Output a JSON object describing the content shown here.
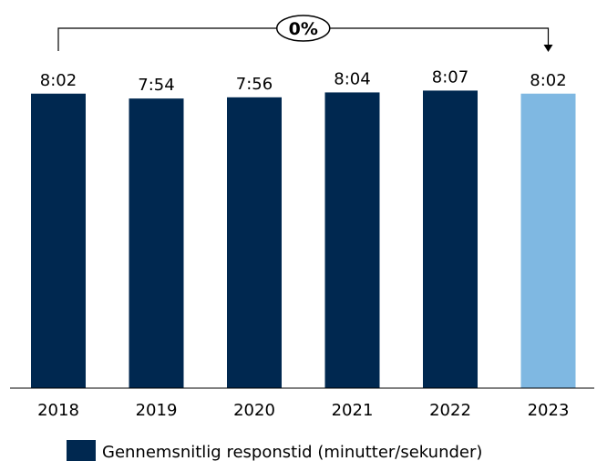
{
  "chart_data": {
    "type": "bar",
    "title": "",
    "xlabel": "",
    "ylabel": "",
    "categories": [
      "2018",
      "2019",
      "2020",
      "2021",
      "2022",
      "2023"
    ],
    "values_seconds": [
      482,
      474,
      476,
      484,
      487,
      482
    ],
    "value_labels": [
      "8:02",
      "7:54",
      "7:56",
      "8:04",
      "8:07",
      "8:02"
    ],
    "series": [
      {
        "name": "Gennemsnitlig responstid (minutter/sekunder)"
      }
    ],
    "ylim": [
      0,
      510
    ],
    "grid": false,
    "legend": "bottom",
    "bar_colors": [
      "#002850",
      "#002850",
      "#002850",
      "#002850",
      "#002850",
      "#7fb8e2"
    ],
    "legend_color": "#002850",
    "change_annotation": {
      "label": "0%",
      "from": "2018",
      "to": "2023"
    }
  }
}
